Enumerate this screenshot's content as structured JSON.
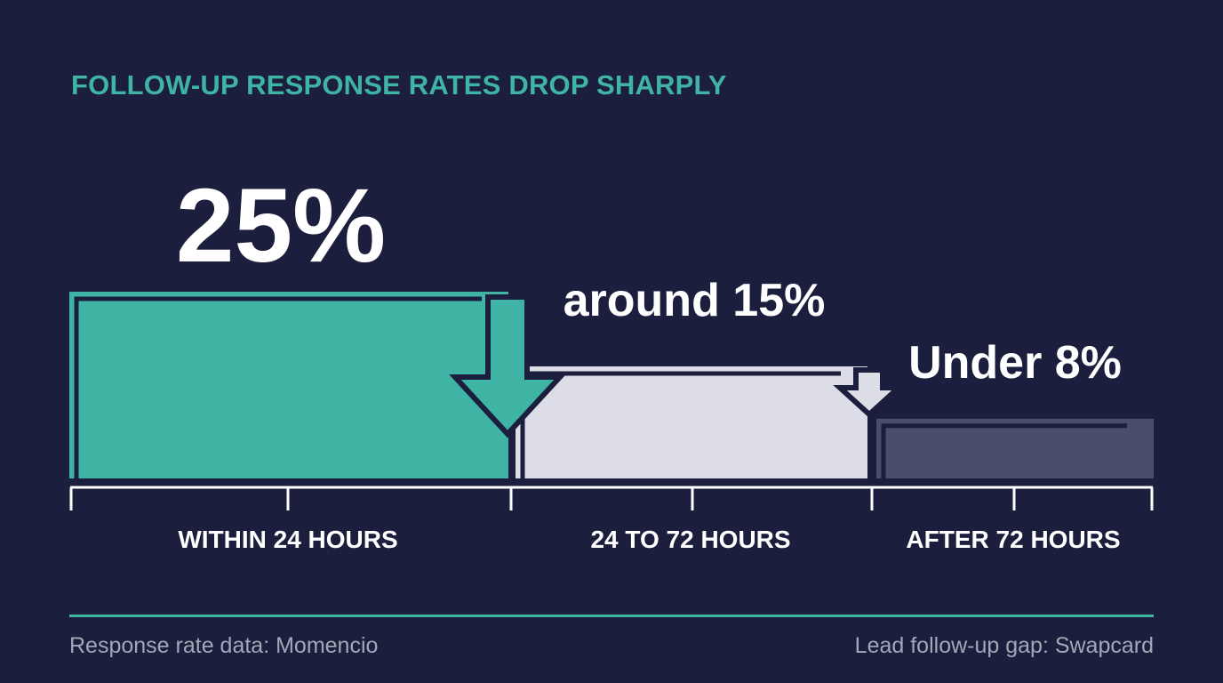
{
  "chart_data": {
    "type": "bar",
    "title": "FOLLOW-UP RESPONSE RATES DROP SHARPLY",
    "categories": [
      "WITHIN 24 HOURS",
      "24 TO 72 HOURS",
      "AFTER 72 HOURS"
    ],
    "values": [
      25,
      15,
      8
    ],
    "value_labels": [
      "25%",
      "around 15%",
      "Under 8%"
    ],
    "unit": "%",
    "colors": [
      "#3fb3a4",
      "#dcdde6",
      "#4a4d6b"
    ],
    "arrows_between_bars": true,
    "grid": false,
    "legend": "none"
  },
  "footer": {
    "left": "Response rate data: Momencio",
    "right": "Lead follow-up gap: Swapcard"
  },
  "theme": {
    "background": "#1b1f3d",
    "accent": "#3fb3a4",
    "text": "#ffffff",
    "muted": "#a3a7b6"
  }
}
